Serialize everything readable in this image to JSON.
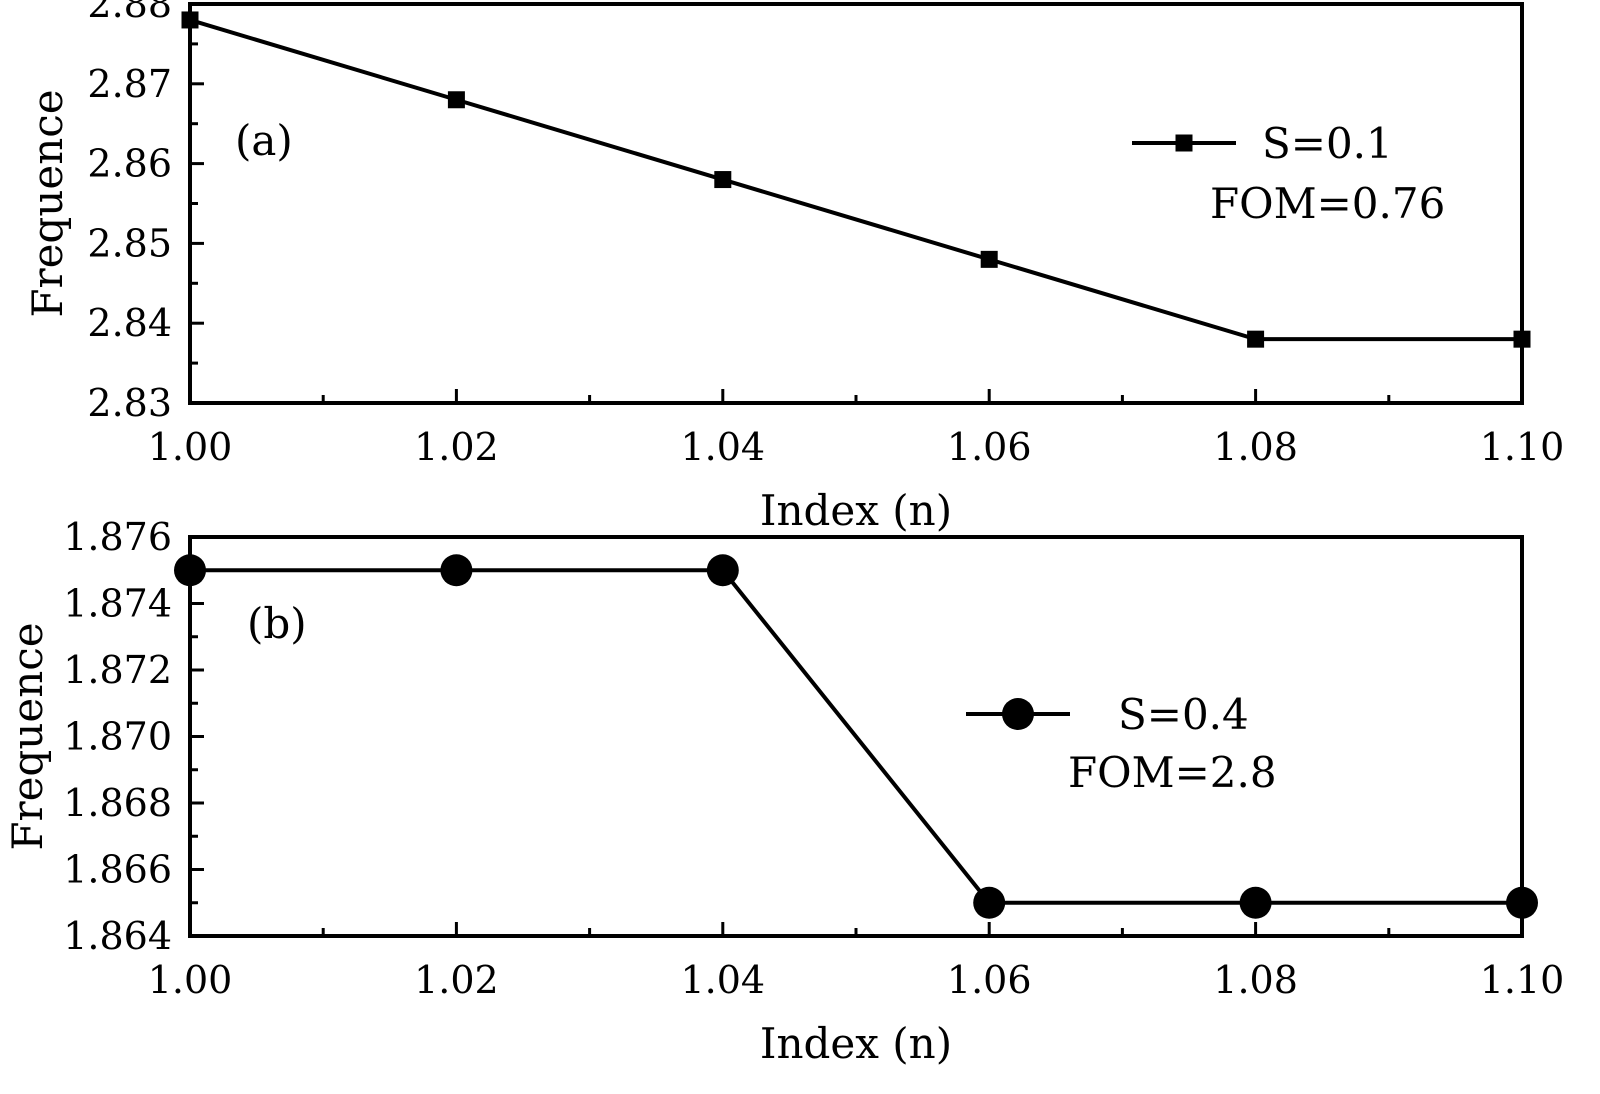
{
  "colors": {
    "series": "#000000",
    "background": "#ffffff"
  },
  "chart_data": [
    {
      "type": "line",
      "panel_label": "(a)",
      "xlabel": "Index (n)",
      "ylabel": "Frequence",
      "xlim": [
        1.0,
        1.1
      ],
      "ylim": [
        2.83,
        2.88
      ],
      "xticks": [
        1.0,
        1.02,
        1.04,
        1.06,
        1.08,
        1.1
      ],
      "xtick_labels": [
        "1.00",
        "1.02",
        "1.04",
        "1.06",
        "1.08",
        "1.10"
      ],
      "yticks": [
        2.83,
        2.84,
        2.85,
        2.86,
        2.87,
        2.88
      ],
      "ytick_labels": [
        "2.83",
        "2.84",
        "2.85",
        "2.86",
        "2.87",
        "2.88"
      ],
      "grid": false,
      "legend_position": "top-right",
      "series": [
        {
          "name": "S=0.1",
          "marker": "square",
          "x": [
            1.0,
            1.02,
            1.04,
            1.06,
            1.08,
            1.1
          ],
          "y": [
            2.878,
            2.868,
            2.858,
            2.848,
            2.838,
            2.838
          ]
        }
      ],
      "annotation": "FOM=0.76"
    },
    {
      "type": "line",
      "panel_label": "(b)",
      "xlabel": "Index (n)",
      "ylabel": "Frequence",
      "xlim": [
        1.0,
        1.1
      ],
      "ylim": [
        1.864,
        1.876
      ],
      "xticks": [
        1.0,
        1.02,
        1.04,
        1.06,
        1.08,
        1.1
      ],
      "xtick_labels": [
        "1.00",
        "1.02",
        "1.04",
        "1.06",
        "1.08",
        "1.10"
      ],
      "yticks": [
        1.864,
        1.866,
        1.868,
        1.87,
        1.872,
        1.874,
        1.876
      ],
      "ytick_labels": [
        "1.864",
        "1.866",
        "1.868",
        "1.870",
        "1.872",
        "1.874",
        "1.876"
      ],
      "grid": false,
      "legend_position": "center-right",
      "series": [
        {
          "name": "S=0.4",
          "marker": "circle",
          "x": [
            1.0,
            1.02,
            1.04,
            1.06,
            1.08,
            1.1
          ],
          "y": [
            1.875,
            1.875,
            1.875,
            1.865,
            1.865,
            1.865
          ]
        }
      ],
      "annotation": "FOM=2.8"
    }
  ]
}
